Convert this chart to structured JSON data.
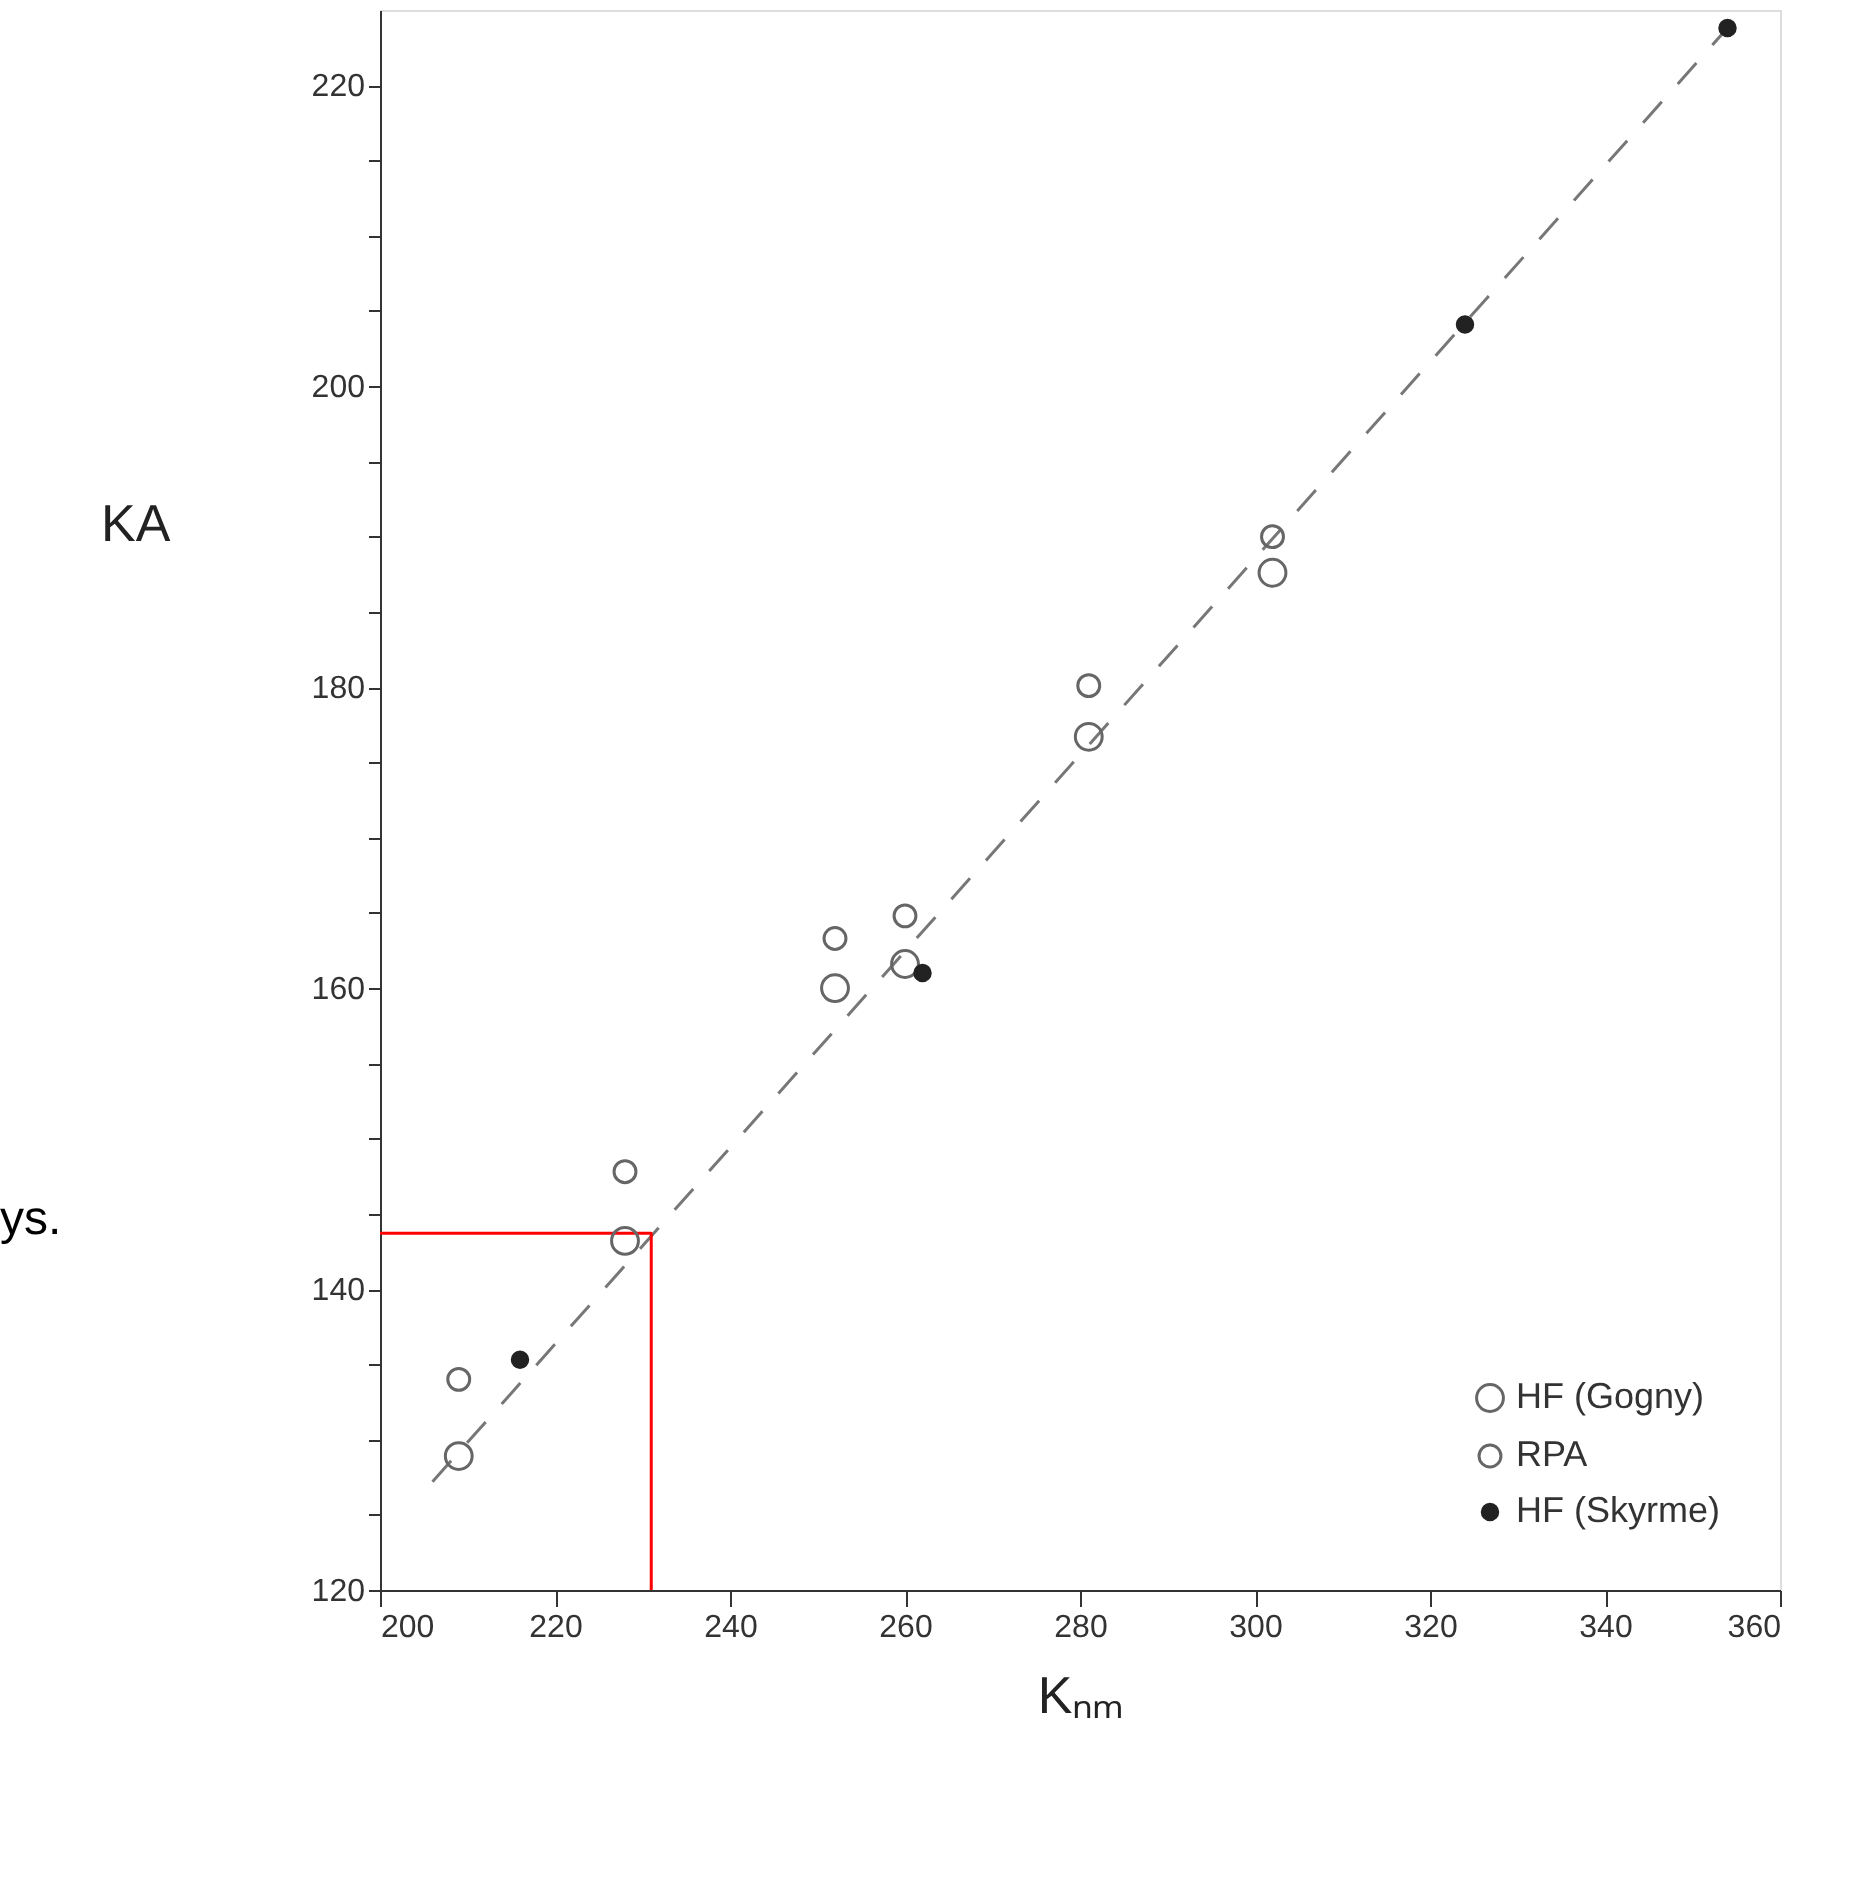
{
  "chart_data": {
    "type": "scatter",
    "xlabel": "Kₙₘ",
    "ylabel": "KA",
    "annotations": [
      "ys."
    ],
    "xlim": [
      200,
      360
    ],
    "xticks": [
      200,
      220,
      240,
      260,
      280,
      300,
      320,
      340,
      360
    ],
    "ylim": [
      120,
      225
    ],
    "yticks": [
      120,
      {
        "value": 125,
        "label": null
      },
      {
        "value": 130,
        "label": null
      },
      {
        "value": 135,
        "label": null
      },
      140,
      {
        "value": 145,
        "label": null
      },
      {
        "value": 150,
        "label": null
      },
      {
        "value": 155,
        "label": null
      },
      160,
      {
        "value": 165,
        "label": null
      },
      {
        "value": 170,
        "label": null
      },
      {
        "value": 175,
        "label": null
      },
      180,
      {
        "value": 185,
        "label": null
      },
      {
        "value": 190,
        "label": null
      },
      {
        "value": 195,
        "label": null
      },
      200,
      {
        "value": 205,
        "label": null
      },
      {
        "value": 210,
        "label": null
      },
      {
        "value": 215,
        "label": null
      },
      220
    ],
    "grid": false,
    "legend": "bottom right",
    "marker": "circle",
    "series": [
      {
        "type": "line",
        "color": "#777777",
        "line_style": "dashed",
        "marker": "none",
        "x": [
          206,
          354
        ],
        "values": [
          127.2,
          223.8
        ]
      },
      {
        "type": "line",
        "color": "#ff0000",
        "line_style": "solid",
        "marker": "none",
        "x": [
          200,
          231,
          231
        ],
        "values": [
          143.7,
          143.7,
          120
        ]
      },
      {
        "name": "HF (Gogny)",
        "color": "#666666",
        "x": [
          209,
          228,
          252,
          260,
          281,
          302
        ],
        "values": [
          128.9,
          143.2,
          160.0,
          161.6,
          176.7,
          187.6
        ]
      },
      {
        "name": "RPA",
        "color": "#666666",
        "x": [
          209,
          228,
          252,
          260,
          281,
          302
        ],
        "values": [
          134.0,
          147.8,
          163.3,
          164.8,
          180.1,
          190.0
        ]
      },
      {
        "name": "HF (Skyrme)",
        "color": "#222222",
        "x": [
          216,
          262,
          324,
          354
        ],
        "values": [
          135.3,
          161.0,
          204.1,
          223.8
        ]
      }
    ]
  }
}
